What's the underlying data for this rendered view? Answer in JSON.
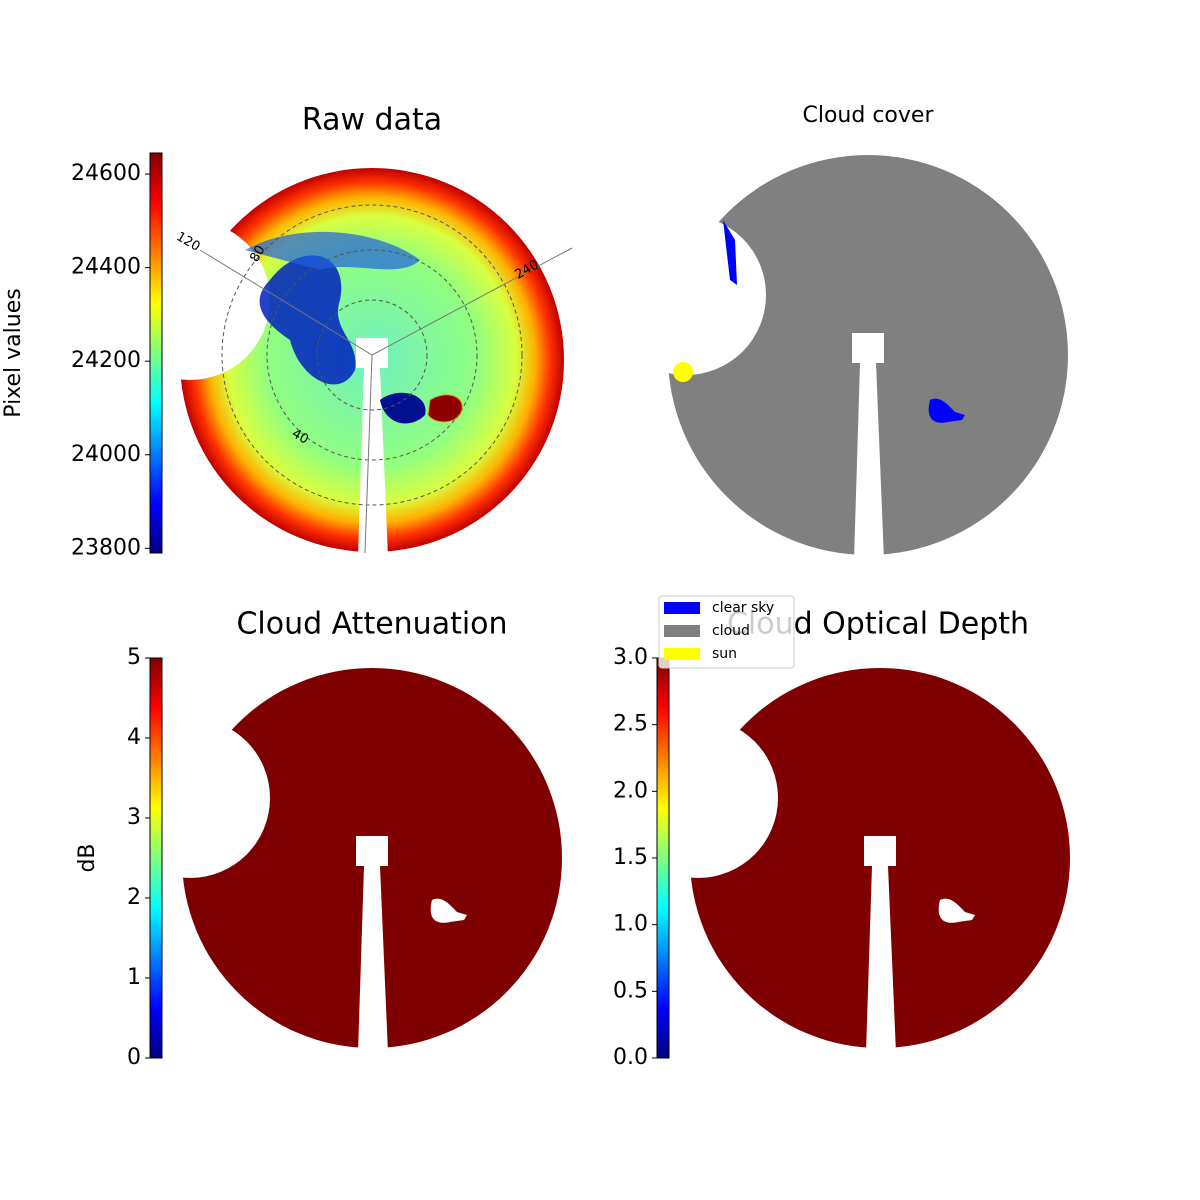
{
  "chart_data": [
    {
      "type": "image",
      "title": "Raw data",
      "colorbar_label": "Pixel values",
      "colormap": "jet",
      "clim": [
        23790,
        24645
      ],
      "cticks": [
        23800,
        24000,
        24200,
        24400,
        24600
      ],
      "annotations": [
        "120",
        "80",
        "40",
        "240"
      ]
    },
    {
      "type": "classes",
      "title": "Cloud cover",
      "series": [
        {
          "name": "clear sky",
          "color": "#0000ff"
        },
        {
          "name": "cloud",
          "color": "#808080"
        },
        {
          "name": "sun",
          "color": "#ffff00"
        }
      ]
    },
    {
      "type": "image",
      "title": "Cloud Attenuation",
      "colorbar_label": "dB",
      "colormap": "jet",
      "clim": [
        0,
        5
      ],
      "cticks": [
        0,
        1,
        2,
        3,
        4,
        5
      ]
    },
    {
      "type": "image",
      "title": "Cloud Optical Depth",
      "colormap": "jet",
      "clim": [
        0,
        3
      ],
      "cticks": [
        {
          "value": 0,
          "label": "0.0"
        },
        {
          "value": 0.5,
          "label": "0.5"
        },
        {
          "value": 1,
          "label": "1.0"
        },
        {
          "value": 1.5,
          "label": "1.5"
        },
        {
          "value": 2,
          "label": "2.0"
        },
        {
          "value": 2.5,
          "label": "2.5"
        },
        {
          "value": 3,
          "label": "3.0"
        }
      ]
    }
  ]
}
